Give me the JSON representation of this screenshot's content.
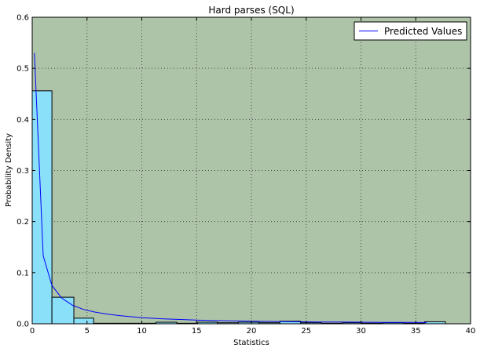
{
  "chart_data": {
    "type": "bar",
    "title": "Hard parses (SQL)",
    "xlabel": "Statistics",
    "ylabel": "Probability Density",
    "xlim": [
      0,
      40
    ],
    "ylim": [
      0,
      0.6
    ],
    "xticks": [
      0,
      5,
      10,
      15,
      20,
      25,
      30,
      35,
      40
    ],
    "yticks": [
      0.0,
      0.1,
      0.2,
      0.3,
      0.4,
      0.5,
      0.6
    ],
    "grid": true,
    "legend_position": "top-right",
    "colors": {
      "plot_background": "#aec4a8",
      "bar_fill": "#8ae0f9",
      "bar_edge": "#000000",
      "line": "#0000ff",
      "grid": "#4a4a4a"
    },
    "histogram": {
      "bin_edges": [
        0.0,
        1.8,
        3.8,
        5.6,
        7.5,
        9.4,
        11.3,
        13.2,
        15.1,
        16.9,
        18.8,
        20.7,
        22.6,
        24.5,
        26.4,
        28.3,
        30.1,
        32.0,
        33.9,
        35.8
      ],
      "densities": [
        0.456,
        0.052,
        0.011,
        0.001,
        0.001,
        0.001,
        0.003,
        0.001,
        0.003,
        0.002,
        0.003,
        0.002,
        0.005,
        0.002,
        0.001,
        0.002,
        0.001,
        0.002,
        0.001,
        0.004
      ]
    },
    "series": [
      {
        "name": "Predicted Values",
        "type": "line",
        "x": [
          0.2,
          1.0,
          1.8,
          2.7,
          3.7,
          4.7,
          5.7,
          6.8,
          8.0,
          10.0,
          12.0,
          14.0,
          16.0,
          18.0,
          20.0,
          22.0,
          24.0,
          26.0,
          28.0,
          30.0,
          32.0,
          34.0,
          36.0
        ],
        "y": [
          0.53,
          0.133,
          0.075,
          0.05,
          0.036,
          0.028,
          0.023,
          0.019,
          0.016,
          0.012,
          0.0095,
          0.008,
          0.0065,
          0.0057,
          0.005,
          0.0045,
          0.004,
          0.0036,
          0.0033,
          0.003,
          0.0028,
          0.0026,
          0.0024
        ]
      }
    ]
  }
}
